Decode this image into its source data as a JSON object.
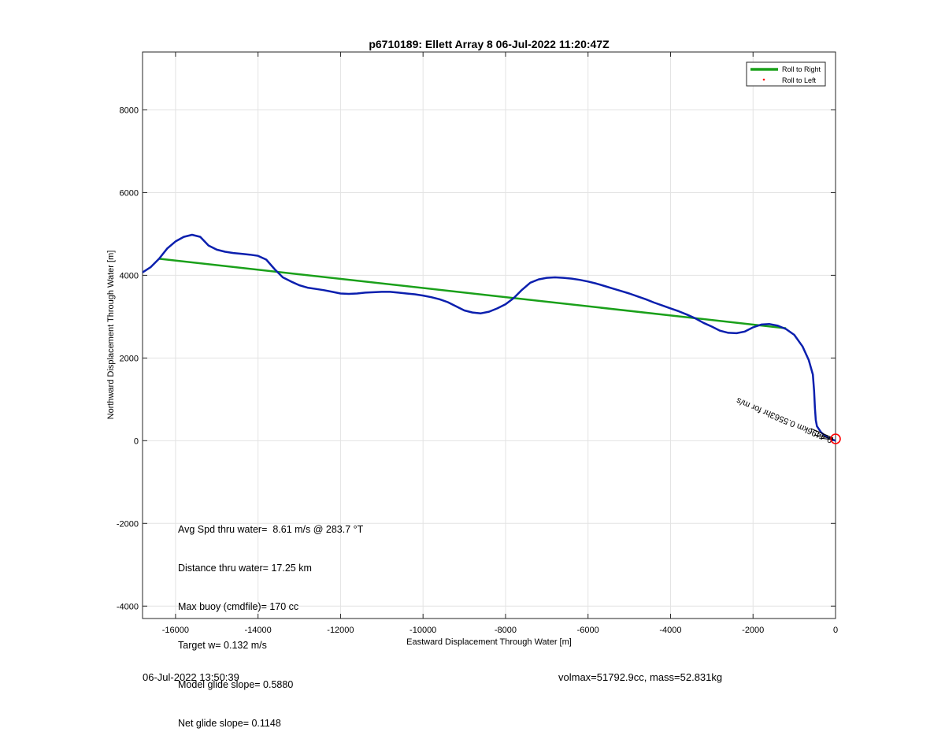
{
  "chart_data": {
    "type": "line",
    "title": "p6710189: Ellett Array 8 06-Jul-2022 11:20:47Z",
    "xlabel": "Eastward Displacement Through Water [m]",
    "ylabel": "Northward Displacement Through Water [m]",
    "xlim": [
      -16800,
      0
    ],
    "ylim": [
      -4300,
      9400
    ],
    "xticks": [
      -16000,
      -14000,
      -12000,
      -10000,
      -8000,
      -6000,
      -4000,
      -2000,
      0
    ],
    "yticks": [
      -4000,
      -2000,
      0,
      2000,
      4000,
      6000,
      8000
    ],
    "grid": true,
    "legend_position": "top-right",
    "legend": [
      "Roll to Right",
      "Roll to Left"
    ],
    "series": [
      {
        "name": "Roll to Right",
        "color": "#1aa01a",
        "x": [
          -1200,
          -16400
        ],
        "y": [
          2720,
          4400
        ]
      },
      {
        "name": "Roll to Left",
        "color": "#ff0000",
        "x": [],
        "y": []
      },
      {
        "color": "#0b1fae",
        "x": [
          -16800,
          -16600,
          -16400,
          -16200,
          -16000,
          -15800,
          -15600,
          -15400,
          -15200,
          -15000,
          -14800,
          -14600,
          -14400,
          -14200,
          -14000,
          -13800,
          -13600,
          -13400,
          -13200,
          -13000,
          -12800,
          -12600,
          -12400,
          -12200,
          -12000,
          -11800,
          -11600,
          -11400,
          -11200,
          -11000,
          -10800,
          -10600,
          -10400,
          -10200,
          -10000,
          -9800,
          -9600,
          -9400,
          -9200,
          -9000,
          -8800,
          -8600,
          -8400,
          -8200,
          -8000,
          -7800,
          -7600,
          -7400,
          -7200,
          -7000,
          -6800,
          -6600,
          -6400,
          -6200,
          -6000,
          -5800,
          -5600,
          -5400,
          -5200,
          -5000,
          -4800,
          -4600,
          -4400,
          -4200,
          -4000,
          -3800,
          -3600,
          -3400,
          -3200,
          -3000,
          -2800,
          -2600,
          -2400,
          -2200,
          -2000,
          -1800,
          -1600,
          -1400,
          -1200,
          -1000,
          -800,
          -650,
          -550,
          -520,
          -500,
          -480,
          -450,
          -350,
          -200,
          -80,
          0
        ],
        "y": [
          4070,
          4200,
          4400,
          4650,
          4820,
          4930,
          4980,
          4930,
          4720,
          4620,
          4570,
          4540,
          4520,
          4500,
          4470,
          4380,
          4150,
          3950,
          3850,
          3760,
          3700,
          3670,
          3640,
          3600,
          3560,
          3550,
          3560,
          3580,
          3590,
          3600,
          3600,
          3580,
          3560,
          3540,
          3510,
          3470,
          3420,
          3350,
          3250,
          3150,
          3100,
          3080,
          3120,
          3200,
          3300,
          3450,
          3650,
          3820,
          3900,
          3940,
          3950,
          3940,
          3920,
          3890,
          3850,
          3800,
          3740,
          3680,
          3620,
          3560,
          3490,
          3420,
          3340,
          3270,
          3200,
          3130,
          3050,
          2960,
          2850,
          2760,
          2660,
          2610,
          2600,
          2640,
          2740,
          2810,
          2820,
          2780,
          2700,
          2560,
          2280,
          1950,
          1600,
          1200,
          800,
          500,
          350,
          200,
          80,
          30,
          0
        ]
      }
    ],
    "annotation": "0.4496km     0.5563hr for      m/s",
    "stats": [
      "Avg Spd thru water=  8.61 m/s @ 283.7 °T",
      "Distance thru water= 17.25 km",
      "Max buoy (cmdfile)= 170 cc",
      "Target w= 0.132 m/s",
      "Model glide slope= 0.5880",
      "Net glide slope= 0.1148"
    ]
  },
  "footer": {
    "left": "06-Jul-2022 13:50:39",
    "right": "volmax=51792.9cc, mass=52.831kg"
  }
}
